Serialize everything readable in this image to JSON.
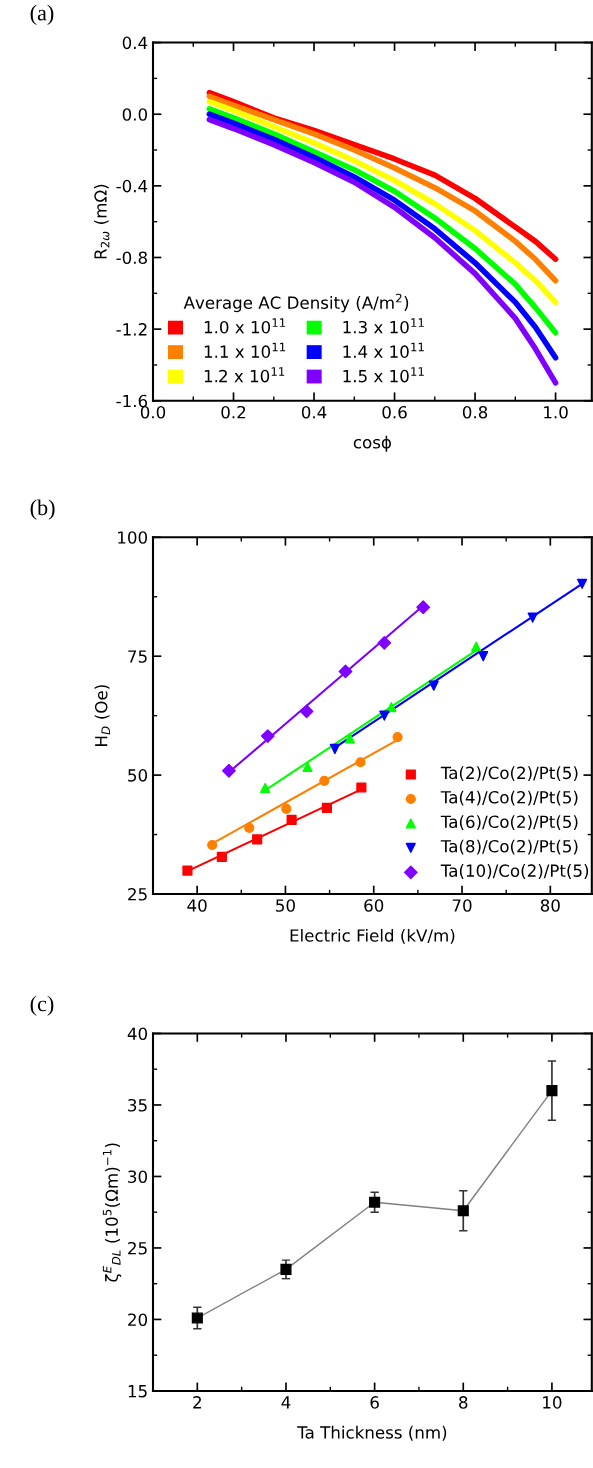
{
  "chart_data": [
    {
      "type": "line",
      "title": "(a)",
      "xlabel": "cosϕ",
      "ylabel": "R$_{2ω}$ (mΩ)",
      "legend_title": "Average AC Density (A/m$^{2}$)",
      "x": [
        0.14,
        0.2,
        0.3,
        0.4,
        0.5,
        0.6,
        0.7,
        0.8,
        0.9,
        0.95,
        1.0
      ],
      "series": [
        {
          "name": "1.0 x 10$^{11}$",
          "color": "#ff0000",
          "values": [
            0.12,
            0.07,
            -0.02,
            -0.09,
            -0.17,
            -0.25,
            -0.34,
            -0.47,
            -0.63,
            -0.71,
            -0.81
          ]
        },
        {
          "name": "1.1 x 10$^{11}$",
          "color": "#ff8000",
          "values": [
            0.1,
            0.05,
            -0.03,
            -0.11,
            -0.2,
            -0.3,
            -0.41,
            -0.54,
            -0.71,
            -0.81,
            -0.93
          ]
        },
        {
          "name": "1.2 x 10$^{11}$",
          "color": "#ffff00",
          "values": [
            0.07,
            0.02,
            -0.07,
            -0.16,
            -0.26,
            -0.37,
            -0.5,
            -0.65,
            -0.83,
            -0.93,
            -1.05
          ]
        },
        {
          "name": "1.3 x 10$^{11}$",
          "color": "#00ff00",
          "values": [
            0.03,
            -0.02,
            -0.11,
            -0.21,
            -0.31,
            -0.43,
            -0.58,
            -0.75,
            -0.95,
            -1.08,
            -1.22
          ]
        },
        {
          "name": "1.4 x 10$^{11}$",
          "color": "#0000ff",
          "values": [
            0.0,
            -0.05,
            -0.14,
            -0.24,
            -0.35,
            -0.48,
            -0.64,
            -0.83,
            -1.05,
            -1.19,
            -1.36
          ]
        },
        {
          "name": "1.5 x 10$^{11}$",
          "color": "#8000ff",
          "values": [
            -0.03,
            -0.08,
            -0.17,
            -0.27,
            -0.38,
            -0.52,
            -0.69,
            -0.89,
            -1.14,
            -1.31,
            -1.5
          ]
        }
      ],
      "xlim": [
        0,
        1.09
      ],
      "xticks": [
        {
          "value": 0,
          "label": "0.0"
        },
        0.2,
        0.4,
        0.6,
        0.8,
        {
          "value": 1,
          "label": "1.0"
        }
      ],
      "ylim": [
        -1.6,
        0.4
      ],
      "yticks": [
        -1.6,
        -1.2,
        -0.8,
        -0.4,
        {
          "value": 0,
          "label": "0.0"
        },
        0.4
      ],
      "legend": "bottom left",
      "grid": false
    },
    {
      "type": "scatter",
      "title": "(b)",
      "xlabel": "Electric Field (kV/m)",
      "ylabel": "H$_{D}$ (Oe)",
      "series": [
        {
          "name": "Ta(2)/Co(2)/Pt(5)",
          "color": "#ff0000",
          "marker": "square",
          "x": [
            38.9,
            42.8,
            46.8,
            50.7,
            54.7,
            58.6
          ],
          "values": [
            29.9,
            32.8,
            36.5,
            40.6,
            43.1,
            47.4
          ]
        },
        {
          "name": "Ta(4)/Co(2)/Pt(5)",
          "color": "#ff8000",
          "marker": "circle",
          "x": [
            41.7,
            45.9,
            50.1,
            54.4,
            58.5,
            62.7
          ],
          "values": [
            35.3,
            38.9,
            42.9,
            48.8,
            52.7,
            58.0
          ]
        },
        {
          "name": "Ta(6)/Co(2)/Pt(5)",
          "color": "#00ff00",
          "marker": "triangle",
          "x": [
            47.7,
            52.5,
            57.3,
            62.0,
            66.8,
            71.6
          ],
          "values": [
            47.3,
            51.7,
            57.7,
            64.3,
            null,
            77.0
          ]
        },
        {
          "name": "Ta(8)/Co(2)/Pt(5)",
          "color": "#0000ff",
          "marker": "triangle_down",
          "x": [
            55.6,
            61.2,
            66.8,
            72.4,
            78.0,
            83.6
          ],
          "values": [
            55.5,
            62.5,
            68.8,
            75.0,
            83.1,
            90.2
          ]
        },
        {
          "name": "Ta(10)/Co(2)/Pt(5)",
          "color": "#8000ff",
          "marker": "diamond",
          "x": [
            43.6,
            48.0,
            52.4,
            56.8,
            61.2,
            65.6
          ],
          "values": [
            50.9,
            58.2,
            63.4,
            71.8,
            77.8,
            85.3
          ]
        },
        {
          "type": "line",
          "color": "#ff0000",
          "x": [
            38.9,
            58.6
          ],
          "values": [
            29.8,
            47.0
          ]
        },
        {
          "type": "line",
          "color": "#ff8000",
          "x": [
            41.7,
            62.7
          ],
          "values": [
            35.6,
            57.4
          ]
        },
        {
          "type": "line",
          "color": "#00ff00",
          "x": [
            47.7,
            71.6
          ],
          "values": [
            46.8,
            76.2
          ]
        },
        {
          "type": "line",
          "color": "#0000ff",
          "x": [
            55.6,
            83.6
          ],
          "values": [
            55.8,
            90.2
          ]
        },
        {
          "type": "line",
          "color": "#8000ff",
          "x": [
            43.6,
            65.6
          ],
          "values": [
            50.6,
            85.6
          ]
        }
      ],
      "xlim": [
        35,
        84.7
      ],
      "xticks": [
        40,
        50,
        60,
        70,
        80
      ],
      "ylim": [
        25,
        100
      ],
      "yticks": [
        25,
        50,
        75,
        100
      ],
      "legend": "bottom right",
      "grid": false
    },
    {
      "type": "line",
      "title": "(c)",
      "xlabel": "Ta Thickness (nm)",
      "ylabel": "ζ$^{E}$$_{DL}$ (10$^{5}$(Ωm)$^{−1}$)",
      "x": [
        2,
        4,
        6,
        8,
        10
      ],
      "series": [
        {
          "color": "#000000",
          "values": [
            20.1,
            23.5,
            28.2,
            27.6,
            36.0
          ],
          "errors": [
            0.75,
            0.65,
            0.7,
            1.4,
            2.07
          ]
        }
      ],
      "xlim": [
        1,
        10.9
      ],
      "xticks": [
        2,
        4,
        6,
        8,
        10
      ],
      "ylim": [
        15,
        40
      ],
      "yticks": [
        15,
        20,
        25,
        30,
        35,
        40
      ],
      "grid": false,
      "marker": "square"
    }
  ]
}
